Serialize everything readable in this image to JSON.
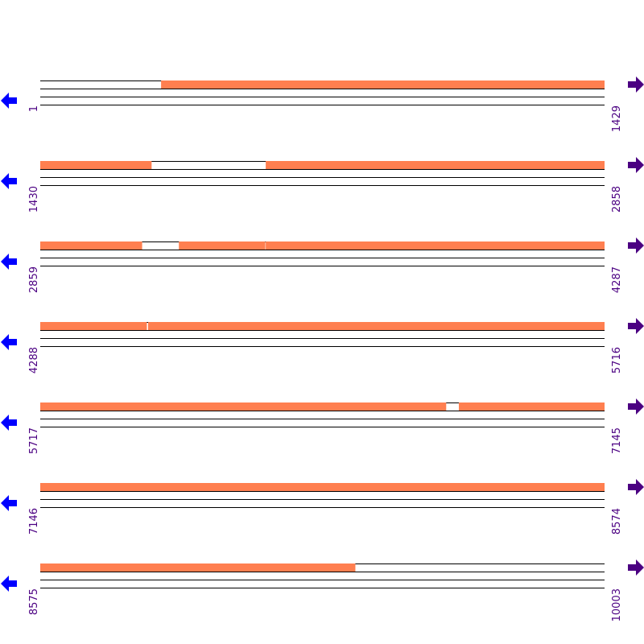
{
  "colors": {
    "coverage": "#ff7f50",
    "line": "#000000",
    "label": "#4b0082",
    "left_arrow": "#0000ff",
    "right_arrow": "#4b0082"
  },
  "icons": {
    "left": "arrow-left-icon",
    "right": "arrow-right-icon"
  },
  "rows": [
    {
      "start": "1",
      "end": "1429",
      "segments": [
        [
          307,
          1429
        ]
      ]
    },
    {
      "start": "1430",
      "end": "2858",
      "segments": [
        [
          1430,
          1711
        ],
        [
          2001,
          2858
        ]
      ]
    },
    {
      "start": "2859",
      "end": "4287",
      "segments": [
        [
          2859,
          3116
        ],
        [
          3210,
          3428
        ],
        [
          3430,
          4287
        ]
      ]
    },
    {
      "start": "4288",
      "end": "5716",
      "segments": [
        [
          4288,
          4557
        ],
        [
          4561,
          5716
        ]
      ]
    },
    {
      "start": "5717",
      "end": "7145",
      "segments": [
        [
          5717,
          6744
        ],
        [
          6777,
          7145
        ]
      ]
    },
    {
      "start": "7146",
      "end": "8574",
      "segments": [
        [
          7146,
          8574
        ]
      ]
    },
    {
      "start": "8575",
      "end": "10003",
      "segments": [
        [
          8575,
          9372
        ]
      ]
    }
  ]
}
